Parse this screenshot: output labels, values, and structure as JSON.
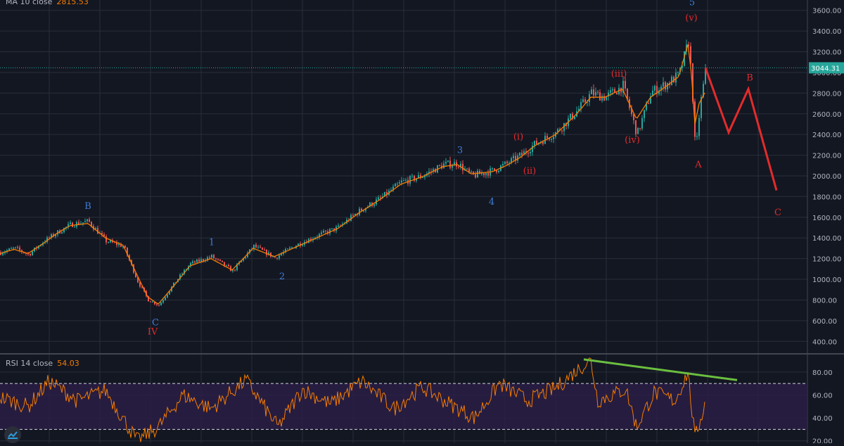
{
  "legend_top": {
    "label": "MA 10 close",
    "value": "2815.53"
  },
  "legend_rsi": {
    "label": "RSI 14 close",
    "value": "54.03"
  },
  "price_label": "3044.31",
  "colors": {
    "bg": "#131722",
    "grid": "#2a2e39",
    "candle_up": "#26a69a",
    "candle_down": "#ef5350",
    "ma": "#f57c00",
    "red_wave": "#e32b2b",
    "blue_wave": "#3f7ed8",
    "green_line": "#6bbf3f",
    "rsi_band": "#2a1d45",
    "price_line": "#26a69a"
  },
  "chart_data": [
    {
      "type": "line",
      "name": "price",
      "ylim": [
        300,
        3700
      ],
      "yticks": [
        400,
        600,
        800,
        1000,
        1200,
        1400,
        1600,
        1800,
        2000,
        2200,
        2400,
        2600,
        2800,
        3000,
        3200,
        3400,
        3600
      ],
      "x_index": [
        0,
        20,
        40,
        60,
        80,
        100,
        125,
        150,
        175,
        195,
        210,
        225,
        250,
        270,
        300,
        330,
        360,
        390,
        420,
        450,
        480,
        510,
        540,
        570,
        600,
        630,
        650,
        670,
        700,
        720,
        740,
        760,
        790,
        820,
        840,
        860,
        885,
        905,
        925,
        950,
        965,
        978,
        983,
        988,
        994,
        1003
      ],
      "values": [
        1260,
        1300,
        1240,
        1360,
        1450,
        1530,
        1560,
        1370,
        1320,
        980,
        800,
        750,
        990,
        1150,
        1220,
        1080,
        1320,
        1210,
        1330,
        1420,
        1500,
        1660,
        1780,
        1940,
        2000,
        2110,
        2120,
        2000,
        2050,
        2120,
        2200,
        2310,
        2420,
        2630,
        2800,
        2760,
        2870,
        2400,
        2810,
        2900,
        2980,
        3300,
        2900,
        2200,
        2650,
        3044
      ],
      "ma_values": [
        1250,
        1290,
        1250,
        1340,
        1440,
        1520,
        1540,
        1400,
        1330,
        1040,
        830,
        760,
        960,
        1130,
        1200,
        1090,
        1300,
        1220,
        1310,
        1400,
        1490,
        1640,
        1770,
        1920,
        1990,
        2090,
        2110,
        2020,
        2040,
        2100,
        2180,
        2290,
        2400,
        2600,
        2760,
        2760,
        2840,
        2550,
        2760,
        2880,
        2960,
        3270,
        3000,
        2500,
        2700,
        2815
      ]
    },
    {
      "type": "line",
      "name": "RSI",
      "ylim": [
        18,
        94
      ],
      "yticks": [
        20,
        40,
        60,
        80
      ],
      "band": [
        30,
        70
      ],
      "x_index": [
        0,
        40,
        70,
        110,
        150,
        195,
        225,
        260,
        300,
        350,
        395,
        430,
        470,
        515,
        560,
        600,
        640,
        675,
        710,
        750,
        790,
        825,
        840,
        850,
        890,
        905,
        930,
        960,
        978,
        988,
        1003
      ],
      "values": [
        58,
        50,
        72,
        55,
        64,
        20,
        32,
        60,
        48,
        73,
        32,
        65,
        52,
        72,
        48,
        67,
        52,
        40,
        70,
        55,
        66,
        84,
        90,
        55,
        65,
        32,
        62,
        55,
        80,
        22,
        54
      ]
    }
  ],
  "annotations": {
    "red": [
      {
        "text": "IV",
        "idx": 217,
        "price": 468
      },
      {
        "text": "(i)",
        "idx": 737,
        "price": 2350
      },
      {
        "text": "(ii)",
        "idx": 753,
        "price": 2020
      },
      {
        "text": "(iii)",
        "idx": 880,
        "price": 2960
      },
      {
        "text": "(iv)",
        "idx": 899,
        "price": 2320
      },
      {
        "text": "(v)",
        "idx": 983,
        "price": 3500
      },
      {
        "text": "A",
        "idx": 993,
        "price": 2080
      },
      {
        "text": "B",
        "idx": 1066,
        "price": 2920
      },
      {
        "text": "C",
        "idx": 1106,
        "price": 1620
      }
    ],
    "blue": [
      {
        "text": "B",
        "idx": 125,
        "price": 1680
      },
      {
        "text": "C",
        "idx": 221,
        "price": 555
      },
      {
        "text": "1",
        "idx": 301,
        "price": 1330
      },
      {
        "text": "2",
        "idx": 401,
        "price": 1000
      },
      {
        "text": "3",
        "idx": 654,
        "price": 2220
      },
      {
        "text": "4",
        "idx": 699,
        "price": 1720
      },
      {
        "text": "5",
        "idx": 984,
        "price": 3650
      }
    ],
    "projection": [
      {
        "idx": 1003,
        "price": 3044
      },
      {
        "idx": 1036,
        "price": 2420
      },
      {
        "idx": 1064,
        "price": 2840
      },
      {
        "idx": 1104,
        "price": 1860
      }
    ],
    "rsi_trendline": [
      {
        "idx": 830,
        "rsi": 91
      },
      {
        "idx": 1048,
        "rsi": 73
      }
    ]
  }
}
